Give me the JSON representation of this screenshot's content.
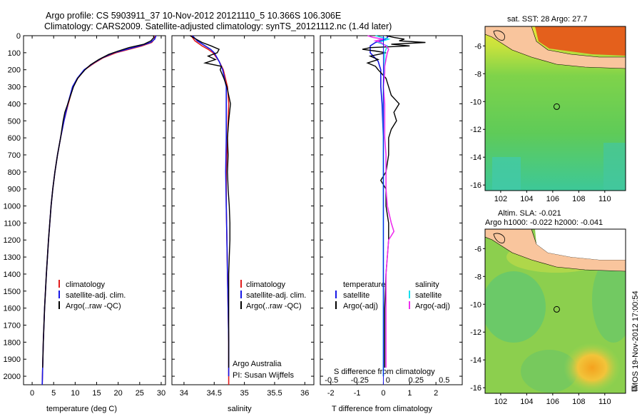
{
  "header": {
    "line1": "Argo profile: CS 5903911_37 10-Nov-2012 20121110_5 10.366S 106.306E",
    "line2": "Climatology: CARS2009. Satellite-adjusted climatology: synTS_20121112.nc (1.4d later)"
  },
  "side_note": "IMOS 19-Nov-2012 17:00:54",
  "colors": {
    "climatology": "#e21d1d",
    "satellite_adj": "#1717e6",
    "argo": "#000000",
    "satellite_s": "#18e0ee",
    "argo_s_adj": "#ee30ee",
    "land": "#f9c59d"
  },
  "chart_data": [
    {
      "type": "line",
      "panel": "temperature",
      "xlabel": "temperature (deg C)",
      "ylabel": "",
      "xlim": [
        -2,
        31
      ],
      "ylim": [
        2050,
        0
      ],
      "xticks": [
        0,
        5,
        10,
        15,
        20,
        25,
        30
      ],
      "yticks": [
        0,
        100,
        200,
        300,
        400,
        500,
        600,
        700,
        800,
        900,
        1000,
        1100,
        1200,
        1300,
        1400,
        1500,
        1600,
        1700,
        1800,
        1900,
        2000
      ],
      "legend": [
        "climatology",
        "satellite-adj. clim.",
        "Argo(..raw -QC)"
      ],
      "series": [
        {
          "name": "climatology",
          "color": "#e21d1d",
          "depth": [
            0,
            20,
            40,
            60,
            80,
            100,
            130,
            160,
            200,
            250,
            300,
            400,
            500,
            600,
            700,
            800,
            900,
            1000,
            1200,
            1400,
            1600,
            1800,
            2000,
            2050
          ],
          "values": [
            28.6,
            28.4,
            27.8,
            25.5,
            22.5,
            19.5,
            16.5,
            14.5,
            12.2,
            10.6,
            9.5,
            8.4,
            7.4,
            6.6,
            5.9,
            5.3,
            4.8,
            4.4,
            3.8,
            3.3,
            2.9,
            2.6,
            2.4,
            2.35
          ]
        },
        {
          "name": "satellite-adj. clim.",
          "color": "#1717e6",
          "depth": [
            0,
            20,
            40,
            60,
            80,
            100,
            130,
            160,
            200,
            250,
            300,
            400,
            500,
            600,
            700,
            800,
            900,
            1000,
            1200,
            1400,
            1600,
            1800,
            2000,
            2050
          ],
          "values": [
            28.8,
            28.5,
            27.5,
            25.0,
            22.0,
            19.0,
            16.3,
            14.3,
            12.1,
            10.5,
            9.4,
            8.3,
            7.4,
            6.6,
            5.9,
            5.3,
            4.8,
            4.4,
            3.8,
            3.3,
            2.9,
            2.6,
            2.4,
            2.35
          ]
        },
        {
          "name": "Argo(..raw -QC)",
          "color": "#000000",
          "depth": [
            0,
            10,
            30,
            50,
            70,
            90,
            110,
            140,
            170,
            200,
            250,
            300,
            400,
            450,
            500,
            600,
            700,
            800,
            900,
            1000,
            1200,
            1400,
            1600,
            1800,
            1950
          ],
          "values": [
            28.2,
            28.3,
            27.6,
            26.0,
            22.5,
            20.0,
            17.8,
            15.5,
            13.6,
            12.3,
            10.6,
            9.6,
            8.3,
            7.6,
            7.2,
            6.6,
            5.9,
            5.3,
            4.8,
            4.4,
            3.8,
            3.3,
            2.9,
            2.6,
            2.45
          ]
        }
      ]
    },
    {
      "type": "line",
      "panel": "salinity",
      "xlabel": "salinity",
      "xlim": [
        33.8,
        36.15
      ],
      "ylim": [
        2050,
        0
      ],
      "xticks": [
        34,
        34.5,
        35,
        35.5,
        36
      ],
      "legend": [
        "climatology",
        "satellite-adj. clim.",
        "Argo(..raw -QC)"
      ],
      "annotation": [
        "Argo Australia",
        "PI: Susan Wijffels"
      ],
      "series": [
        {
          "name": "climatology",
          "color": "#e21d1d",
          "depth": [
            0,
            30,
            60,
            80,
            100,
            150,
            200,
            300,
            400,
            600,
            800,
            1000,
            1200,
            1400,
            1600,
            1800,
            2000,
            2050
          ],
          "values": [
            34.12,
            34.18,
            34.3,
            34.4,
            34.48,
            34.58,
            34.65,
            34.72,
            34.74,
            34.72,
            34.7,
            34.7,
            34.71,
            34.72,
            34.73,
            34.74,
            34.74,
            34.74
          ]
        },
        {
          "name": "satellite-adj. clim.",
          "color": "#1717e6",
          "depth": [
            0,
            30,
            60,
            80,
            100,
            150,
            200,
            300,
            400,
            600,
            800,
            1000,
            1200,
            1400,
            1600,
            1800,
            2000
          ],
          "values": [
            34.14,
            34.22,
            34.35,
            34.44,
            34.5,
            34.58,
            34.64,
            34.7,
            34.7,
            34.7,
            34.69,
            34.7,
            34.71,
            34.72,
            34.73,
            34.74,
            34.74
          ]
        },
        {
          "name": "Argo(..raw -QC)",
          "color": "#000000",
          "depth": [
            0,
            20,
            40,
            60,
            80,
            100,
            120,
            140,
            160,
            180,
            200,
            250,
            300,
            350,
            400,
            500,
            600,
            700,
            800,
            900,
            1000,
            1100,
            1200,
            1300,
            1400,
            1600,
            1800,
            1950
          ],
          "values": [
            34.1,
            34.2,
            34.3,
            34.45,
            34.58,
            34.55,
            34.4,
            34.52,
            34.35,
            34.62,
            34.6,
            34.66,
            34.71,
            34.74,
            34.77,
            34.74,
            34.72,
            34.73,
            34.72,
            34.73,
            34.75,
            34.76,
            34.76,
            34.75,
            34.74,
            34.74,
            34.74,
            34.74
          ]
        }
      ]
    },
    {
      "type": "line",
      "panel": "difference",
      "xlabel_top": "S difference from climatology",
      "xlabel": "T difference from climatology",
      "xlim": [
        -2.4,
        3.0
      ],
      "ylim": [
        2050,
        0
      ],
      "xticks": [
        -2,
        -1,
        0,
        1,
        2
      ],
      "xticks_s": [
        -0.5,
        -0.25,
        0,
        0.25,
        0.5
      ],
      "legend": {
        "temperature": [
          "satellite",
          "Argo(-adj)"
        ],
        "salinity": [
          "satellite",
          "Argo(-adj)"
        ]
      },
      "series": [
        {
          "name": "satellite",
          "group": "temperature",
          "color": "#1717e6",
          "depth": [
            0,
            20,
            40,
            60,
            80,
            100,
            150,
            200,
            300,
            400,
            600,
            800,
            1000,
            1200,
            1500,
            1800,
            2000
          ],
          "values": [
            0.2,
            0.1,
            -0.3,
            -0.5,
            -0.5,
            -0.5,
            -0.2,
            -0.1,
            -0.1,
            -0.05,
            0,
            0,
            0,
            0,
            0,
            0,
            0
          ]
        },
        {
          "name": "Argo(-adj)",
          "group": "temperature",
          "color": "#000000",
          "depth": [
            0,
            10,
            20,
            30,
            40,
            50,
            60,
            70,
            80,
            90,
            100,
            120,
            140,
            160,
            180,
            200,
            250,
            300,
            350,
            400,
            450,
            500,
            550,
            600,
            700,
            800,
            850,
            900,
            1000,
            1100,
            1200,
            1400,
            1600,
            1800,
            1950
          ],
          "values": [
            0.1,
            0.4,
            0.8,
            0.6,
            1.6,
            0.3,
            1.0,
            -0.5,
            -0.8,
            -0.3,
            0.1,
            -0.5,
            -0.2,
            -0.6,
            -0.3,
            -0.2,
            0.1,
            0.2,
            0.3,
            0.6,
            0.4,
            0.5,
            0.3,
            0.2,
            0.2,
            0.1,
            -0.1,
            0.1,
            0.1,
            0.2,
            0.2,
            0.1,
            0.05,
            0.05,
            0.05
          ]
        },
        {
          "name": "satellite",
          "group": "salinity",
          "color": "#18e0ee",
          "depth": [
            0,
            20,
            40,
            60,
            80,
            100,
            150,
            200,
            300,
            400,
            600,
            800,
            1000,
            1200,
            1500,
            1800,
            2000
          ],
          "values": [
            -0.3,
            0.2,
            -0.2,
            0.15,
            0.1,
            0.05,
            0.05,
            0.02,
            0,
            0,
            0,
            0,
            0,
            0,
            0,
            0,
            0
          ]
        },
        {
          "name": "Argo(-adj)",
          "group": "salinity",
          "color": "#ee30ee",
          "depth": [
            0,
            10,
            20,
            30,
            40,
            60,
            80,
            100,
            140,
            180,
            220,
            300,
            400,
            500,
            600,
            700,
            800,
            900,
            1000,
            1100,
            1150,
            1200,
            1300,
            1400,
            1600,
            1800,
            1950
          ],
          "values": [
            -0.6,
            -0.4,
            0.0,
            -0.3,
            -0.1,
            0.1,
            0.2,
            0.15,
            0.1,
            0.05,
            0.05,
            0.0,
            0.05,
            0.05,
            0.05,
            0.1,
            0.1,
            0.1,
            0.15,
            0.3,
            0.4,
            0.2,
            0.15,
            0.1,
            0.1,
            0.1,
            0.1
          ]
        }
      ]
    },
    {
      "type": "heatmap",
      "panel": "sst-map",
      "title": "sat. SST: 28 Argo: 27.7",
      "xlim": [
        100.8,
        111.6
      ],
      "ylim": [
        -16.4,
        -4.6
      ],
      "xticks": [
        102,
        104,
        106,
        108,
        110
      ],
      "yticks": [
        -6,
        -8,
        -10,
        -12,
        -14,
        -16
      ],
      "marker": {
        "lon": 106.306,
        "lat": -10.366
      }
    },
    {
      "type": "heatmap",
      "panel": "sla-map",
      "title": [
        "Altim. SLA: -0.021",
        "Argo h1000: -0.022 h2000: -0.041"
      ],
      "xlim": [
        100.8,
        111.6
      ],
      "ylim": [
        -16.4,
        -4.6
      ],
      "xticks": [
        102,
        104,
        106,
        108,
        110
      ],
      "yticks": [
        -6,
        -8,
        -10,
        -12,
        -14,
        -16
      ],
      "marker": {
        "lon": 106.306,
        "lat": -10.366
      }
    }
  ]
}
